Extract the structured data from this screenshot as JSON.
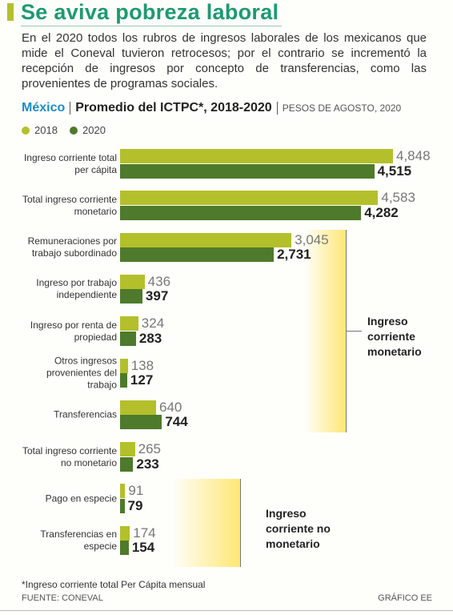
{
  "chart_data": {
    "type": "bar",
    "title": "Se aviva pobreza laboral",
    "subtitle": "En el 2020 todos los rubros de ingresos laborales de los mexicanos que mide el Coneval tuvieron retrocesos; por el contrario se incrementó la recepción de ingresos por concepto de transferencias, como las provenientes de programas sociales.",
    "heading": {
      "region": "México",
      "title": "Promedio del ICTPC*, 2018-2020",
      "unit": "PESOS DE AGOSTO, 2020"
    },
    "categories": [
      "Ingreso corriente total per cápita",
      "Total ingreso corriente monetario",
      "Remuneraciones por trabajo subordinado",
      "Ingreso por trabajo independiente",
      "Ingreso por renta de propiedad",
      "Otros ingresos provenientes del trabajo",
      "Transferencias",
      "Total ingreso corriente no monetario",
      "Pago en especie",
      "Transferencias en especie"
    ],
    "series": [
      {
        "name": "2018",
        "color": "#b3c02b",
        "values": [
          4848,
          4583,
          3045,
          436,
          324,
          138,
          640,
          265,
          91,
          174
        ],
        "value_labels": [
          "4,848",
          "4,583",
          "3,045",
          "436",
          "324",
          "138",
          "640",
          "265",
          "91",
          "174"
        ]
      },
      {
        "name": "2020",
        "color": "#4e7a2b",
        "values": [
          4515,
          4282,
          2731,
          397,
          283,
          127,
          744,
          233,
          79,
          154
        ],
        "value_labels": [
          "4,515",
          "4,282",
          "2,731",
          "397",
          "283",
          "127",
          "744",
          "233",
          "79",
          "154"
        ]
      }
    ],
    "annotations": [
      "Ingreso corriente monetario",
      "Ingreso corriente no monetario"
    ],
    "footnote": "*Ingreso corriente total Per Cápita mensual",
    "source": "FUENTE: CONEVAL",
    "credit": "GRÁFICO EE"
  }
}
